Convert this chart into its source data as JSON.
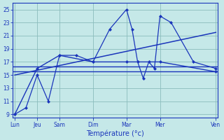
{
  "xlabel": "Température (°c)",
  "background_color": "#c5e8e8",
  "grid_color": "#8bbcbc",
  "line_color": "#1a35bb",
  "ylim": [
    8.5,
    26.0
  ],
  "yticks": [
    9,
    11,
    13,
    15,
    17,
    19,
    21,
    23,
    25
  ],
  "xlim": [
    -0.1,
    9.1
  ],
  "day_positions": [
    0,
    1,
    2,
    3.5,
    5,
    6.5,
    9
  ],
  "day_labels": [
    "Lun",
    "Jeu",
    "Sam",
    "Dim",
    "Mar",
    "Mer",
    "Ven"
  ],
  "series_zigzag_x": [
    0,
    0.5,
    1,
    1.5,
    2,
    2.75,
    3.5,
    4.25,
    5,
    5.25,
    5.5,
    5.75,
    6,
    6.25,
    6.5,
    7.0,
    8.0,
    9
  ],
  "series_zigzag_y": [
    9,
    10,
    15,
    11,
    18,
    18,
    17,
    22,
    25,
    22,
    17,
    14.5,
    17,
    16,
    24,
    23,
    17,
    16
  ],
  "series_avg_x": [
    0,
    1,
    2,
    3.5,
    5,
    6.5,
    9
  ],
  "series_avg_y": [
    9,
    16,
    18,
    17,
    17,
    17,
    15.5
  ],
  "horiz1_y": 16.3,
  "horiz2_y": 15.5,
  "trend_x": [
    0,
    9
  ],
  "trend_y": [
    15,
    21.5
  ]
}
